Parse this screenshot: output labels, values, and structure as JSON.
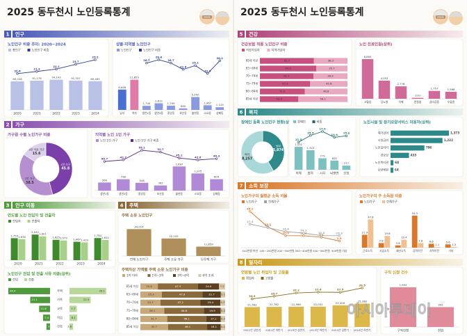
{
  "watermark": "아시아투데이",
  "pages": [
    {
      "title": "2025 동두천시 노인등록통계",
      "sections": [
        {
          "number": "1",
          "title": "인구",
          "color": "#4a5bb8",
          "charts": [
            {
              "type": "bar",
              "title": "노인인구 비중 추이: 2020~2024",
              "categories": [
                "2020",
                "2021",
                "2022",
                "2023",
                "2024"
              ],
              "series": [
                {
                  "name": "총인구",
                  "color": "#b9c2e6",
                  "values": [
                    89228,
                    91178,
                    94143,
                    91357,
                    89465
                  ],
                  "value_labels": [
                    "89,228",
                    "91,178",
                    "94,143",
                    "91,357",
                    "89,465"
                  ]
                },
                {
                  "name": "노인인구 비중",
                  "color": "#2e3f8f",
                  "axis": "y2",
                  "values": [
                    20.6,
                    21.3,
                    22.1,
                    23.7,
                    25.2
                  ]
                }
              ]
            },
            {
              "type": "bar",
              "title": "성별·지역별 노인인구",
              "categories": [
                "남자",
                "여자",
                "생연1동",
                "생연2동",
                "중앙동",
                "보산동",
                "불현동",
                "소요동",
                "상패동"
              ],
              "series": [
                {
                  "name": "노인인구",
                  "color": "#8a9ae0",
                  "colors": [
                    "#4a6fd0",
                    "#e07aa8",
                    "#8a9ae0",
                    "#8a9ae0",
                    "#8a9ae0",
                    "#8a9ae0",
                    "#8a9ae0",
                    "#8a9ae0",
                    "#8a9ae0"
                  ],
                  "values": [
                    8646,
                    12853,
                    1740,
                    2812,
                    1795,
                    660,
                    5490,
                    1967,
                    1143
                  ],
                  "value_labels": [
                    "8,646",
                    "12,853",
                    "1,740",
                    "2,812",
                    "1,795",
                    "660",
                    "5,490",
                    "1,967",
                    "1,143"
                  ]
                },
                {
                  "name": "노인인구 비중",
                  "color": "#2e3f8f",
                  "axis": "y2",
                  "values": [
                    null,
                    null,
                    26.7,
                    28.8,
                    26.7,
                    22.6,
                    25.1,
                    19.9,
                    28.2
                  ]
                }
              ]
            }
          ]
        },
        {
          "number": "2",
          "title": "가구",
          "color": "#8a4fae",
          "charts": [
            {
              "type": "donut",
              "title": "가구원 수별 노인가구 비중",
              "categories": [
                "1인 가구",
                "2인 가구",
                "3인 이상 가구"
              ],
              "values": [
                45.8,
                38.5,
                15.6
              ],
              "colors": [
                "#7a3fa8",
                "#b58fd0",
                "#ddd0ec"
              ]
            },
            {
              "type": "bar",
              "title": "지역별 노인 1인 가구",
              "categories": [
                "생연1동",
                "생연2동",
                "중앙동",
                "보산동",
                "불현동",
                "소요동",
                "상패동"
              ],
              "series": [
                {
                  "name": "노인 1인 가구",
                  "color": "#b08ad6",
                  "values": [
                    569,
                    798,
                    548,
                    362,
                    1697,
                    1205,
                    804
                  ],
                  "value_labels": [
                    "569",
                    "798",
                    "548",
                    "362",
                    "1,697",
                    "1,205",
                    "804"
                  ]
                },
                {
                  "name": "노인 1인 가구 비중",
                  "color": "#5a2f88",
                  "axis": "y2",
                  "values": [
                    40.7,
                    42.7,
                    55.1,
                    52.7,
                    45.1,
                    42.6,
                    44.3
                  ]
                }
              ]
            }
          ]
        },
        {
          "number": "3",
          "title": "인구 이동",
          "color": "#4f9a3c",
          "charts": [
            {
              "type": "bar",
              "title": "연도별 노인 전입자 및 전출자",
              "categories": [
                "2020",
                "2021",
                "2022",
                "2023",
                "2024"
              ],
              "series": [
                {
                  "name": "전입자",
                  "color": "#3f8a2c",
                  "values": [
                    1753,
                    2042,
                    1625,
                    1467,
                    1764
                  ],
                  "value_labels": [
                    "1,753",
                    "2,042",
                    "1,625",
                    "1,467",
                    "1,764"
                  ]
                },
                {
                  "name": "전출자",
                  "color": "#a8d08a",
                  "values": [
                    1678,
                    1901,
                    1573,
                    1419,
                    1612
                  ],
                  "value_labels": [
                    "1,678",
                    "1,901",
                    "1,573",
                    "1,419",
                    "1,612"
                  ]
                }
              ]
            },
            {
              "type": "diverging",
              "title": "노인인구 전입 및 전출 사유 비중(상위)",
              "categories": [
                "주택",
                "가족",
                "교육",
                "직업",
                "건강"
              ],
              "series": [
                {
                  "name": "전입",
                  "color": "#4f9a3c",
                  "values": [
                    44.4,
                    21.1,
                    11.6,
                    7.4,
                    3.8
                  ]
                },
                {
                  "name": "전출",
                  "color": "#b8d89a",
                  "values": [
                    39.1,
                    22.5,
                    7.7,
                    8.1,
                    3.8
                  ]
                }
              ]
            }
          ]
        },
        {
          "number": "4",
          "title": "주택",
          "color": "#8a6a3a",
          "charts": [
            {
              "type": "bar",
              "title": "주택 소유 노인인구",
              "categories": [
                "전체 노인가구",
                "주택 소유 가구",
                "무주택 가구"
              ],
              "series": [
                {
                  "name": "노인가구",
                  "color": "#b0905a",
                  "values": [
                    34014,
                    22155,
                    11859
                  ],
                  "value_labels": [
                    "34,014",
                    "22,155",
                    "11,859"
                  ]
                }
              ]
            },
            {
              "type": "stackedh",
              "title": "주택자산 가액별 주택 소유 노인가구 비중",
              "categories": [
                "65세 이상",
                "65~69세",
                "70~74세",
                "75~79세",
                "80~84세",
                "85세 이상"
              ],
              "series": [
                {
                  "name": "1억 이하",
                  "color": "#c8a878",
                  "values": [
                    20.6,
                    25.3,
                    23.7,
                    28.1,
                    31.7,
                    32.7
                  ]
                },
                {
                  "name": "1억~3억",
                  "color": "#8a6a3a",
                  "values": [
                    47.3,
                    47.9,
                    47.2,
                    46.8,
                    46.1,
                    46.1
                  ]
                },
                {
                  "name": "3억~6억",
                  "color": "#5a4020",
                  "values": [
                    24.9,
                    21.7,
                    23.4,
                    19.9,
                    17.1,
                    16.1
                  ]
                },
                {
                  "name": "6억 초과",
                  "color": "#d8c8a8",
                  "values": [
                    7.2,
                    5.1,
                    5.7,
                    5.3,
                    5.2,
                    5.2
                  ]
                }
              ]
            }
          ]
        }
      ]
    },
    {
      "title": "2025 동두천시 노인등록통계",
      "sections": [
        {
          "number": "5",
          "title": "건강",
          "color": "#b0457a",
          "charts": [
            {
              "type": "stackedh",
              "title": "건강보험 적용 노인인구 비중",
              "categories": [
                "65세 이상",
                "65~69세",
                "70~74세",
                "75~79세",
                "80~84세",
                "85세 이상"
              ],
              "series": [
                {
                  "name": "직장가입자",
                  "color": "#c8507f",
                  "values": [
                    61.7,
                    64.3,
                    61.1,
                    57.4,
                    51.2,
                    43.9
                  ]
                },
                {
                  "name": "지역가입자",
                  "color": "#e8a8c0",
                  "values": [
                    38.3,
                    35.7,
                    38.9,
                    42.6,
                    48.8,
                    56.1
                  ]
                }
              ]
            },
            {
              "type": "bar",
              "title": "노인 진료인원(상위)",
              "categories": [
                "고혈압",
                "당뇨병",
                "치매",
                "관절염",
                "골다공증",
                "우울증"
              ],
              "series": [
                {
                  "name": "진료인원",
                  "color": "#d06a98",
                  "values": [
                    8865,
                    4052,
                    2778,
                    210,
                    1757,
                    1568
                  ],
                  "value_labels": [
                    "8,865",
                    "4,052",
                    "2,778",
                    "210",
                    "1,757",
                    "1,568"
                  ]
                }
              ]
            }
          ]
        },
        {
          "number": "6",
          "title": "복지",
          "color": "#2e8a8a",
          "charts": [
            {
              "type": "donut",
              "title": "장애인 등록 노인인구 현황(상위)",
              "categories": [
                "남자",
                "여자"
              ],
              "values": [
                5874,
                8257
              ],
              "value_labels": [
                "5,874",
                "8,257"
              ],
              "colors": [
                "#2e8a8a",
                "#a8d8d8"
              ]
            },
            {
              "type": "bar",
              "categories": [
                "지체",
                "청각",
                "시각",
                "뇌병변",
                "신장"
              ],
              "series": [
                {
                  "name": "장애인",
                  "color": "#7cc0c0",
                  "values": [
                    1551,
                    1325,
                    779,
                    620,
                    277
                  ],
                  "value_labels": [
                    "1,551",
                    "1,325",
                    "779",
                    "620",
                    "277"
                  ]
                },
                {
                  "name": "비중",
                  "color": "#1e6a6a",
                  "axis": "y2",
                  "values": [
                    11.5,
                    15.5,
                    17.9,
                    14.4,
                    15.3
                  ]
                }
              ]
            },
            {
              "type": "hbar",
              "title": "노인시설 및 장기요양서비스 이용자(상위)",
              "categories": [
                "재가급여",
                "시설급여",
                "노인일자리",
                "경로당",
                "노인복지관",
                "요양병원"
              ],
              "values": [
                1373,
                1222,
                796,
                433,
                68,
                64
              ],
              "value_labels": [
                "1,373",
                "1,222",
                "796",
                "433",
                "68",
                "64"
              ],
              "color": "#2e8a8a"
            }
          ]
        },
        {
          "number": "7",
          "title": "소득 보장",
          "color": "#d9772a",
          "charts": [
            {
              "type": "line",
              "title": "노인가구의 월평균 소득 비율",
              "categories": [
                "100만원 미만",
                "100~200만원",
                "200~300만원",
                "300~400만원",
                "400~500만원",
                "500만원 이상"
              ],
              "series": [
                {
                  "name": "노인가구",
                  "color": "#d9772a",
                  "values": [
                    46.2,
                    23.1,
                    10.4,
                    10.2,
                    8.1,
                    2.5
                  ]
                },
                {
                  "name": "전체가구",
                  "color": "#a0a0a0",
                  "values": [
                    27.3,
                    22.1,
                    16.4,
                    14.1,
                    10.4,
                    10.3
                  ]
                }
              ]
            },
            {
              "type": "bar",
              "title": "노인가구의 주 소득원 비중",
              "categories": [
                "근로소득",
                "사업소득",
                "재산소득",
                "공적이전",
                "사적이전",
                "기타"
              ],
              "series": [
                {
                  "name": "노인가구",
                  "color": "#d9772a",
                  "values": [
                    21.9,
                    7.8,
                    3.8,
                    54.3,
                    6.6,
                    5.6
                  ]
                },
                {
                  "name": "전체가구",
                  "color": "#f0c090",
                  "values": [
                    47.8,
                    19.8,
                    13.4,
                    7.8,
                    1.1,
                    1.3
                  ]
                }
              ]
            }
          ]
        },
        {
          "number": "8",
          "title": "일자리",
          "color": "#c99a1e",
          "charts": [
            {
              "type": "bar",
              "title": "연령별 노인 취업자 및 고용률",
              "categories": [
                "2022년 상반기",
                "2022년 하반기",
                "2023년 상반기",
                "2023년 하반기",
                "2024년 상반기",
                "2024년 하반기"
              ],
              "series": [
                {
                  "name": "취업자",
                  "color": "#dcb84a",
                  "values": [
                    21583,
                    21782,
                    21986,
                    22031,
                    23428,
                    25268
                  ],
                  "value_labels": [
                    "21,583",
                    "21,782",
                    "21,986",
                    "22,031",
                    "23,428",
                    "25,268"
                  ]
                },
                {
                  "name": "고용률",
                  "color": "#8a6a10",
                  "axis": "y2",
                  "values": [
                    34.5,
                    35.7,
                    37.2,
                    37.6,
                    37.5,
                    39.5
                  ]
                }
              ]
            },
            {
              "type": "bar",
              "title": "구직 신청 건수",
              "categories": [
                "구직신청",
                "취업"
              ],
              "series": [
                {
                  "name": "구직",
                  "color": "#e08a9a",
                  "values": [
                    1904,
                    952
                  ],
                  "value_labels": [
                    "1,904",
                    "952"
                  ]
                }
              ]
            }
          ]
        }
      ]
    }
  ]
}
